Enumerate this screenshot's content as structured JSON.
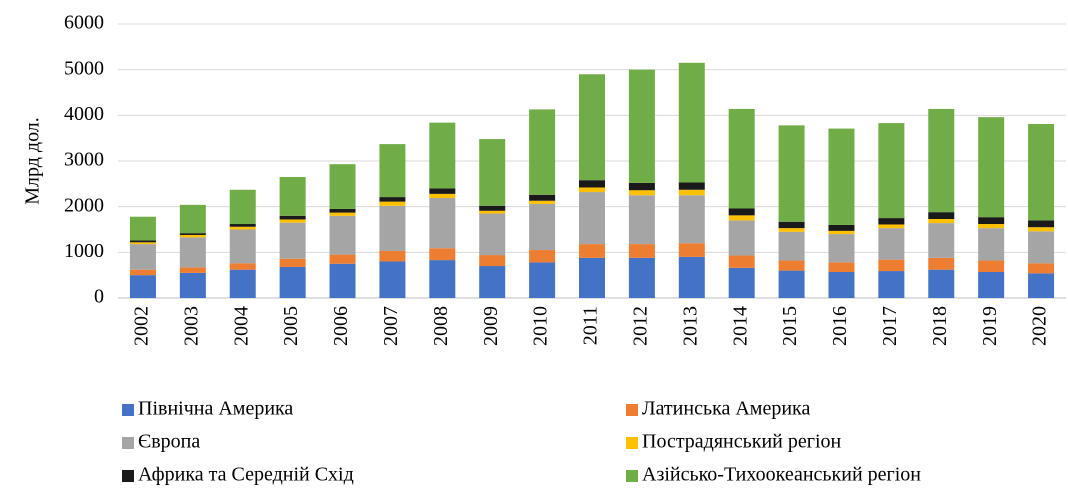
{
  "chart_data": {
    "type": "stacked_bar",
    "y_label": "Млрд дол.",
    "categories": [
      "2002",
      "2003",
      "2004",
      "2005",
      "2006",
      "2007",
      "2008",
      "2009",
      "2010",
      "2011",
      "2012",
      "2013",
      "2014",
      "2015",
      "2016",
      "2017",
      "2018",
      "2019",
      "2020"
    ],
    "series": [
      {
        "name": "Північна Америка",
        "color": "#4472c4",
        "values": [
          500,
          550,
          620,
          680,
          750,
          800,
          830,
          700,
          780,
          880,
          880,
          900,
          660,
          600,
          570,
          590,
          620,
          570,
          540
        ]
      },
      {
        "name": "Латинська Америка",
        "color": "#ed7d31",
        "values": [
          120,
          120,
          140,
          180,
          200,
          230,
          260,
          240,
          270,
          300,
          300,
          300,
          270,
          220,
          210,
          250,
          260,
          250,
          220
        ]
      },
      {
        "name": "Європа",
        "color": "#a5a5a5",
        "values": [
          560,
          660,
          740,
          790,
          850,
          990,
          1100,
          910,
          1010,
          1140,
          1070,
          1050,
          770,
          630,
          620,
          690,
          760,
          710,
          700
        ]
      },
      {
        "name": "Пострадянський регіон",
        "color": "#ffc000",
        "values": [
          40,
          50,
          60,
          70,
          70,
          90,
          90,
          60,
          70,
          100,
          110,
          120,
          110,
          80,
          70,
          80,
          90,
          90,
          90
        ]
      },
      {
        "name": "Африка та Середній Схід",
        "color": "#1a1a1a",
        "values": [
          40,
          40,
          60,
          80,
          80,
          100,
          120,
          110,
          130,
          160,
          160,
          160,
          150,
          140,
          130,
          140,
          150,
          150,
          150
        ]
      },
      {
        "name": "Азійсько-Тихоокеанський регіон",
        "color": "#70ad47",
        "values": [
          520,
          620,
          750,
          850,
          980,
          1160,
          1440,
          1460,
          1870,
          2320,
          2480,
          2620,
          2180,
          2110,
          2110,
          2080,
          2260,
          2190,
          2110
        ]
      }
    ],
    "ylim": [
      0,
      6000
    ],
    "yticks": [
      0,
      1000,
      2000,
      3000,
      4000,
      5000,
      6000
    ],
    "grid": true
  }
}
